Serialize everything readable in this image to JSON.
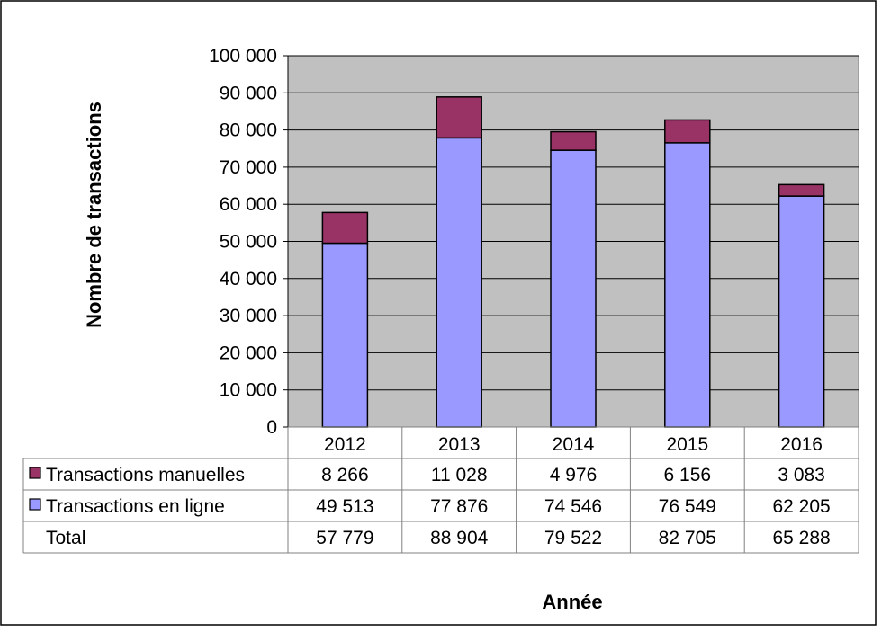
{
  "chart_data": {
    "type": "bar",
    "stacked": true,
    "categories": [
      "2012",
      "2013",
      "2014",
      "2015",
      "2016"
    ],
    "series": [
      {
        "name": "Transactions en ligne",
        "values": [
          49513,
          77876,
          74546,
          76549,
          62205
        ],
        "labels": [
          "49 513",
          "77 876",
          "74 546",
          "76 549",
          "62 205"
        ],
        "color": "#9999ff"
      },
      {
        "name": "Transactions manuelles",
        "values": [
          8266,
          11028,
          4976,
          6156,
          3083
        ],
        "labels": [
          "8 266",
          "11 028",
          "4 976",
          "6 156",
          "3 083"
        ],
        "color": "#993366"
      }
    ],
    "totals": {
      "name": "Total",
      "values": [
        57779,
        88904,
        79522,
        82705,
        65288
      ],
      "labels": [
        "57 779",
        "88 904",
        "79 522",
        "82 705",
        "65 288"
      ]
    },
    "table_rows": [
      "Transactions manuelles",
      "Transactions en ligne",
      "Total"
    ],
    "xlabel": "Année",
    "ylabel": "Nombre de transactions",
    "ylim": [
      0,
      100000
    ],
    "yticks": [
      0,
      10000,
      20000,
      30000,
      40000,
      50000,
      60000,
      70000,
      80000,
      90000,
      100000
    ],
    "ytick_labels": [
      "0",
      "10 000",
      "20 000",
      "30 000",
      "40 000",
      "50 000",
      "60 000",
      "70 000",
      "80 000",
      "90 000",
      "100 000"
    ],
    "grid": true,
    "legend": "data-table",
    "plot_background": "#c0c0c0"
  }
}
